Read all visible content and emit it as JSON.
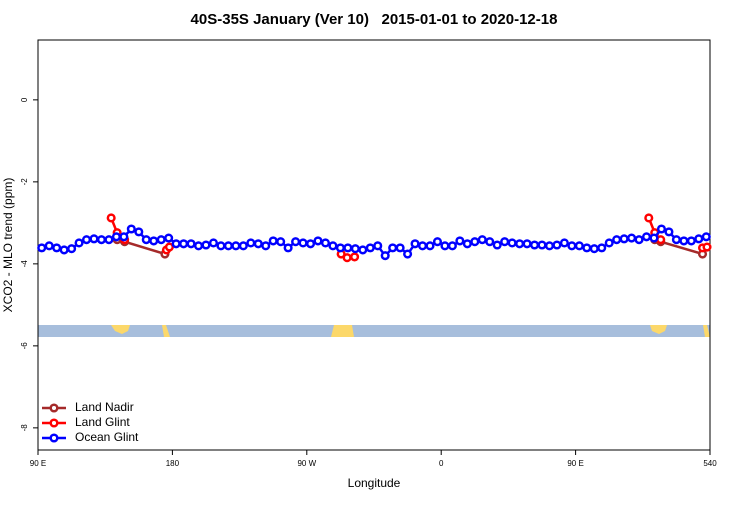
{
  "chart_data": {
    "type": "line",
    "title": "40S-35S January (Ver 10)   2015-01-01 to 2020-12-18",
    "x_label": "Longitude",
    "y_label": "XCO2 - MLO trend (ppm)",
    "xlim": [
      90,
      540
    ],
    "ylim": [
      -8.54,
      1.46
    ],
    "xticks": [
      {
        "value": 90,
        "label": "90 E"
      },
      180,
      {
        "value": 270,
        "label": "90 W"
      },
      {
        "value": 360,
        "label": "0"
      },
      {
        "value": 450,
        "label": "90 E"
      },
      540
    ],
    "yticks": [
      -8,
      -6,
      -4,
      -2,
      0
    ],
    "legend": "bottom-left",
    "series": [
      {
        "name": "Land Nadir",
        "color": "#a52a2a",
        "x": [
          143,
          148,
          175,
          340,
          503,
          507,
          535
        ],
        "values": [
          -3.41,
          -3.46,
          -3.76,
          null,
          -3.41,
          -3.46,
          -3.76
        ]
      },
      {
        "name": "Land Glint",
        "color": "#ff0000",
        "x": [
          139,
          143,
          148,
          160,
          176,
          178,
          290,
          293,
          297,
          302,
          400,
          499,
          503,
          507,
          520,
          535,
          538
        ],
        "values": [
          -2.88,
          -3.24,
          -3.41,
          null,
          -3.66,
          -3.59,
          null,
          -3.76,
          -3.85,
          -3.83,
          null,
          -2.88,
          -3.24,
          -3.41,
          null,
          -3.61,
          -3.59
        ]
      },
      {
        "name": "Ocean Glint",
        "color": "#0000ff",
        "x": [
          92.5,
          97.5,
          102.5,
          107.5,
          112.5,
          117.5,
          122.5,
          127.5,
          132.5,
          137.5,
          142.5,
          147.5,
          152.5,
          157.5,
          162.5,
          167.5,
          172.5,
          177.5,
          182.5,
          187.5,
          192.5,
          197.5,
          202.5,
          207.5,
          212.5,
          217.5,
          222.5,
          227.5,
          232.5,
          237.5,
          242.5,
          247.5,
          252.5,
          257.5,
          262.5,
          267.5,
          272.5,
          277.5,
          282.5,
          287.5,
          292.5,
          297.5,
          302.5,
          307.5,
          312.5,
          317.5,
          322.5,
          327.5,
          332.5,
          337.5,
          342.5,
          347.5,
          352.5,
          357.5,
          362.5,
          367.5,
          372.5,
          377.5,
          382.5,
          387.5,
          392.5,
          397.5,
          402.5,
          407.5,
          412.5,
          417.5,
          422.5,
          427.5,
          432.5,
          437.5,
          442.5,
          447.5,
          452.5,
          457.5,
          462.5,
          467.5,
          472.5,
          477.5,
          482.5,
          487.5,
          492.5,
          497.5,
          502.5,
          507.5,
          512.5,
          517.5,
          522.5,
          527.5,
          532.5,
          537.5
        ],
        "values": [
          -3.61,
          -3.56,
          -3.61,
          -3.66,
          -3.63,
          -3.49,
          -3.41,
          -3.39,
          -3.41,
          -3.41,
          -3.34,
          -3.34,
          -3.15,
          -3.22,
          -3.41,
          -3.44,
          -3.41,
          -3.37,
          -3.51,
          -3.51,
          -3.51,
          -3.56,
          -3.54,
          -3.49,
          -3.56,
          -3.56,
          -3.56,
          -3.56,
          -3.49,
          -3.51,
          -3.56,
          -3.44,
          -3.46,
          -3.61,
          -3.46,
          -3.49,
          -3.51,
          -3.44,
          -3.49,
          -3.56,
          -3.61,
          -3.61,
          -3.63,
          -3.66,
          -3.61,
          -3.56,
          -3.8,
          -3.61,
          -3.61,
          -3.76,
          -3.51,
          -3.56,
          -3.56,
          -3.46,
          -3.56,
          -3.56,
          -3.44,
          -3.51,
          -3.46,
          -3.41,
          -3.46,
          -3.54,
          -3.46,
          -3.49,
          -3.51,
          -3.51,
          -3.54,
          -3.54,
          -3.56,
          -3.54,
          -3.49,
          -3.56,
          -3.56,
          -3.61,
          -3.63,
          -3.61,
          -3.49,
          -3.41,
          -3.39,
          -3.37,
          -3.41,
          -3.34,
          -3.37,
          -3.15,
          -3.22,
          -3.41,
          -3.44,
          -3.44,
          -3.39,
          -3.34
        ]
      }
    ]
  }
}
